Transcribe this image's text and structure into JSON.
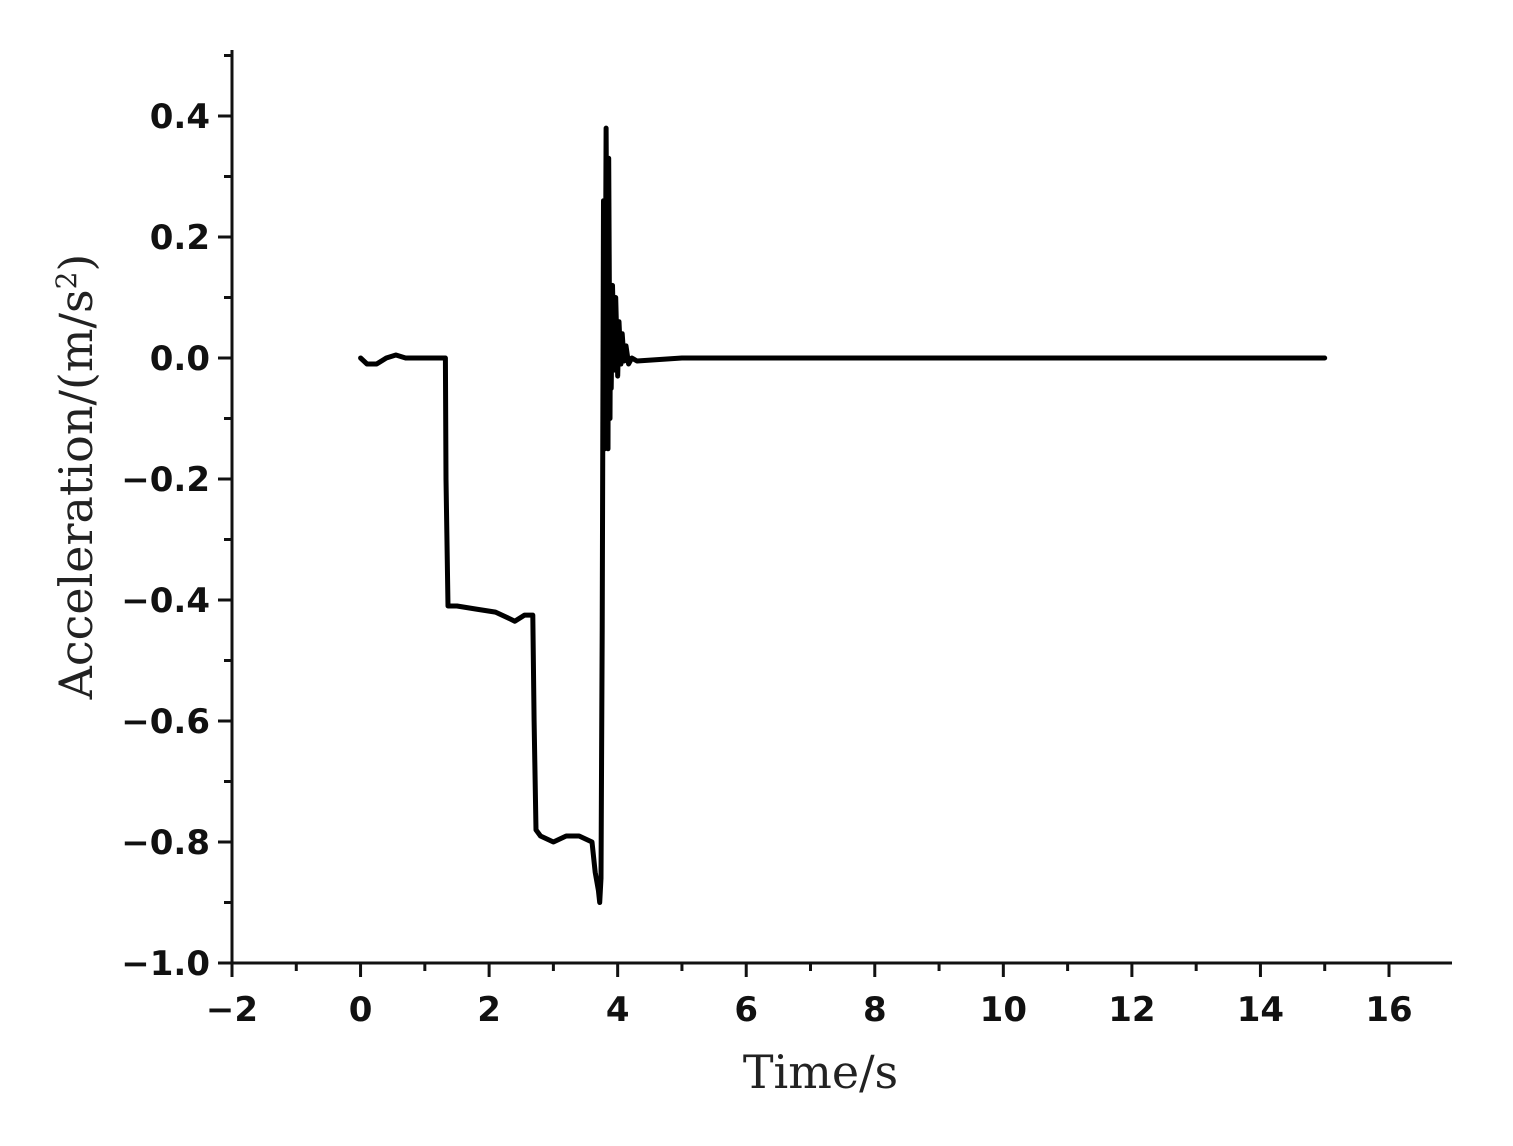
{
  "chart_data": {
    "type": "line",
    "xlabel": "Time/s",
    "ylabel_main": "Acceleration/(m/s",
    "ylabel_sup": "2",
    "ylabel_close": ")",
    "xlim": [
      -2,
      17
    ],
    "ylim": [
      -1.0,
      0.5
    ],
    "xticks": [
      -2,
      0,
      2,
      4,
      6,
      8,
      10,
      12,
      14,
      16
    ],
    "xtick_labels": [
      "−2",
      "0",
      "2",
      "4",
      "6",
      "8",
      "10",
      "12",
      "14",
      "16"
    ],
    "yticks": [
      -1.0,
      -0.8,
      -0.6,
      -0.4,
      -0.2,
      0.0,
      0.2,
      0.4
    ],
    "ytick_labels": [
      "−1.0",
      "−0.8",
      "−0.6",
      "−0.4",
      "−0.2",
      "0.0",
      "0.2",
      "0.4"
    ],
    "grid": false,
    "series": [
      {
        "color": "#000000",
        "x": [
          0.0,
          0.1,
          0.25,
          0.4,
          0.55,
          0.7,
          1.0,
          1.32,
          1.33,
          1.36,
          1.5,
          1.8,
          2.1,
          2.3,
          2.4,
          2.55,
          2.68,
          2.7,
          2.73,
          2.8,
          3.0,
          3.2,
          3.4,
          3.6,
          3.65,
          3.7,
          3.72,
          3.74,
          3.76,
          3.78,
          3.8,
          3.82,
          3.83,
          3.85,
          3.86,
          3.88,
          3.89,
          3.9,
          3.92,
          3.95,
          3.97,
          4.0,
          4.02,
          4.05,
          4.07,
          4.1,
          4.13,
          4.17,
          4.22,
          4.3,
          5.0,
          8.0,
          12.0,
          15.0
        ],
        "y": [
          0.0,
          -0.01,
          -0.01,
          0.0,
          0.005,
          0.0,
          0.0,
          0.0,
          -0.2,
          -0.41,
          -0.41,
          -0.415,
          -0.42,
          -0.43,
          -0.435,
          -0.425,
          -0.425,
          -0.6,
          -0.78,
          -0.79,
          -0.8,
          -0.79,
          -0.79,
          -0.8,
          -0.85,
          -0.88,
          -0.9,
          -0.86,
          -0.45,
          0.26,
          -0.15,
          0.38,
          0.2,
          -0.15,
          0.33,
          -0.1,
          0.12,
          -0.05,
          0.12,
          -0.02,
          0.1,
          -0.03,
          0.06,
          -0.01,
          0.04,
          -0.005,
          0.02,
          -0.01,
          0.0,
          -0.005,
          0.0,
          0.0,
          0.0,
          0.0
        ]
      }
    ]
  }
}
